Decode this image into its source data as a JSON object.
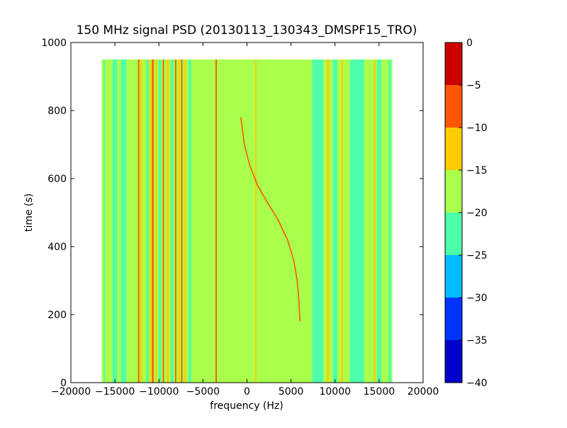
{
  "chart_data": {
    "type": "heatmap",
    "title": "150 MHz signal PSD (20130113_130343_DMSPF15_TRO)",
    "xlabel": "frequency (Hz)",
    "ylabel": "time (s)",
    "xlim": [
      -20000,
      20000
    ],
    "ylim": [
      0,
      1000
    ],
    "xticks": [
      -20000,
      -15000,
      -10000,
      -5000,
      0,
      5000,
      10000,
      15000,
      20000
    ],
    "xtick_labels": [
      "−20000",
      "−15000",
      "−10000",
      "−5000",
      "0",
      "5000",
      "10000",
      "15000",
      "20000"
    ],
    "yticks": [
      0,
      200,
      400,
      600,
      800,
      1000
    ],
    "ytick_labels": [
      "0",
      "200",
      "400",
      "600",
      "800",
      "1000"
    ],
    "data_extent": {
      "freq": [
        -16500,
        16500
      ],
      "time": [
        0,
        950
      ]
    },
    "background_level": -17.5,
    "vertical_features": [
      {
        "freq": -16200,
        "width": 150,
        "level": -22.5
      },
      {
        "freq": -15700,
        "width": 250,
        "level": -17.5
      },
      {
        "freq": -15000,
        "width": 500,
        "level": -22.5
      },
      {
        "freq": -14000,
        "width": 600,
        "level": -22.5
      },
      {
        "freq": -12700,
        "width": 250,
        "level": -17.5
      },
      {
        "freq": -12300,
        "width": 150,
        "level": -7.5
      },
      {
        "freq": -12000,
        "width": 200,
        "level": -12.5
      },
      {
        "freq": -11300,
        "width": 250,
        "level": -22.5
      },
      {
        "freq": -11000,
        "width": 200,
        "level": -12.5
      },
      {
        "freq": -10700,
        "width": 200,
        "level": -7.5
      },
      {
        "freq": -10300,
        "width": 200,
        "level": -12.5
      },
      {
        "freq": -9900,
        "width": 300,
        "level": -22.5
      },
      {
        "freq": -9500,
        "width": 150,
        "level": -7.5
      },
      {
        "freq": -9000,
        "width": 250,
        "level": -12.5
      },
      {
        "freq": -8500,
        "width": 300,
        "level": -22.5
      },
      {
        "freq": -8100,
        "width": 150,
        "level": -7.5
      },
      {
        "freq": -7700,
        "width": 200,
        "level": -12.5
      },
      {
        "freq": -7400,
        "width": 150,
        "level": -7.5
      },
      {
        "freq": -7000,
        "width": 200,
        "level": -12.5
      },
      {
        "freq": -6500,
        "width": 300,
        "level": -22.5
      },
      {
        "freq": -3500,
        "width": 150,
        "level": -7.5
      },
      {
        "freq": 1000,
        "width": 150,
        "level": -12.5
      },
      {
        "freq": 7600,
        "width": 400,
        "level": -22.5
      },
      {
        "freq": 8200,
        "width": 900,
        "level": -22.5
      },
      {
        "freq": 9200,
        "width": 250,
        "level": -12.5
      },
      {
        "freq": 10000,
        "width": 500,
        "level": -22.5
      },
      {
        "freq": 10800,
        "width": 200,
        "level": -12.5
      },
      {
        "freq": 11300,
        "width": 300,
        "level": -17.5
      },
      {
        "freq": 12500,
        "width": 1600,
        "level": -22.5
      },
      {
        "freq": 14500,
        "width": 200,
        "level": -12.5
      },
      {
        "freq": 15000,
        "width": 500,
        "level": -22.5
      },
      {
        "freq": 15700,
        "width": 500,
        "level": -17.5
      },
      {
        "freq": 16200,
        "width": 300,
        "level": -22.5
      }
    ],
    "doppler_trace": {
      "level": -7.5,
      "points": [
        {
          "time": 780,
          "freq": -700
        },
        {
          "time": 700,
          "freq": -300
        },
        {
          "time": 640,
          "freq": 300
        },
        {
          "time": 580,
          "freq": 1200
        },
        {
          "time": 530,
          "freq": 2300
        },
        {
          "time": 480,
          "freq": 3500
        },
        {
          "time": 420,
          "freq": 4600
        },
        {
          "time": 360,
          "freq": 5300
        },
        {
          "time": 300,
          "freq": 5700
        },
        {
          "time": 240,
          "freq": 5900
        },
        {
          "time": 180,
          "freq": 6000
        }
      ]
    },
    "colorbar": {
      "levels": [
        -40,
        -35,
        -30,
        -25,
        -20,
        -15,
        -10,
        -5,
        0
      ],
      "tick_labels": [
        "−40",
        "−35",
        "−30",
        "−25",
        "−20",
        "−15",
        "−10",
        "−5",
        "0"
      ],
      "colors": [
        "#0000cc",
        "#0033ff",
        "#00bbff",
        "#4dffaa",
        "#aaff4d",
        "#ffcc00",
        "#ff5500",
        "#cc0000"
      ]
    }
  }
}
